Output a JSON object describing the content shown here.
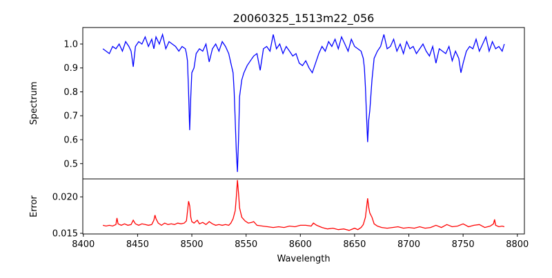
{
  "chart_data": [
    {
      "type": "line",
      "title": "20060325_1513m22_056",
      "xlabel": "",
      "ylabel": "Spectrum",
      "xlim": [
        8399.5,
        8806.5
      ],
      "ylim": [
        0.436,
        1.069
      ],
      "yticks": [
        "0.5",
        "0.6",
        "0.7",
        "0.8",
        "0.9",
        "1.0"
      ],
      "ytick_values": [
        0.5,
        0.6,
        0.7,
        0.8,
        0.9,
        1.0
      ],
      "color": "#0000ff",
      "x": [
        8418,
        8421,
        8424,
        8427,
        8430,
        8433,
        8436,
        8439,
        8442,
        8444,
        8446,
        8448,
        8451,
        8454,
        8457,
        8460,
        8463,
        8465,
        8467,
        8470,
        8473,
        8476,
        8479,
        8482,
        8485,
        8488,
        8491,
        8494,
        8495,
        8496,
        8497,
        8498,
        8499,
        8500,
        8502,
        8504,
        8507,
        8510,
        8513,
        8516,
        8519,
        8522,
        8525,
        8528,
        8531,
        8534,
        8536,
        8538,
        8539,
        8540,
        8541,
        8542,
        8543,
        8544,
        8546,
        8548,
        8551,
        8554,
        8557,
        8560,
        8563,
        8566,
        8569,
        8572,
        8575,
        8578,
        8581,
        8584,
        8587,
        8590,
        8593,
        8596,
        8599,
        8602,
        8605,
        8608,
        8611,
        8614,
        8617,
        8620,
        8623,
        8626,
        8629,
        8632,
        8635,
        8638,
        8641,
        8644,
        8647,
        8650,
        8653,
        8656,
        8658,
        8659,
        8660,
        8661,
        8662,
        8663,
        8664,
        8666,
        8668,
        8671,
        8674,
        8677,
        8680,
        8683,
        8686,
        8689,
        8692,
        8695,
        8698,
        8701,
        8704,
        8707,
        8710,
        8713,
        8716,
        8719,
        8722,
        8725,
        8728,
        8731,
        8734,
        8737,
        8740,
        8743,
        8746,
        8748,
        8750,
        8753,
        8756,
        8759,
        8762,
        8765,
        8768,
        8771,
        8774,
        8777,
        8780,
        8783,
        8786,
        8788
      ],
      "y": [
        0.98,
        0.97,
        0.96,
        0.99,
        0.98,
        1.0,
        0.97,
        1.01,
        0.99,
        0.97,
        0.905,
        0.99,
        1.01,
        1.0,
        1.03,
        0.99,
        1.02,
        0.98,
        1.03,
        1.0,
        1.04,
        0.98,
        1.01,
        1.0,
        0.99,
        0.97,
        0.99,
        0.98,
        0.96,
        0.93,
        0.8,
        0.64,
        0.78,
        0.88,
        0.9,
        0.96,
        0.98,
        0.97,
        1.0,
        0.925,
        0.98,
        1.0,
        0.97,
        1.01,
        0.99,
        0.96,
        0.92,
        0.88,
        0.8,
        0.68,
        0.55,
        0.465,
        0.6,
        0.78,
        0.85,
        0.88,
        0.91,
        0.93,
        0.95,
        0.96,
        0.89,
        0.98,
        0.99,
        0.97,
        1.04,
        0.98,
        1.0,
        0.96,
        0.99,
        0.97,
        0.95,
        0.96,
        0.92,
        0.91,
        0.93,
        0.9,
        0.88,
        0.92,
        0.96,
        0.99,
        0.97,
        1.01,
        0.99,
        1.02,
        0.98,
        1.03,
        1.0,
        0.97,
        1.02,
        0.99,
        0.98,
        0.97,
        0.94,
        0.9,
        0.82,
        0.7,
        0.59,
        0.68,
        0.72,
        0.85,
        0.94,
        0.97,
        0.99,
        1.04,
        0.98,
        0.99,
        1.02,
        0.97,
        1.0,
        0.96,
        1.01,
        0.98,
        0.99,
        0.96,
        0.98,
        1.0,
        0.97,
        0.95,
        0.99,
        0.92,
        0.98,
        0.97,
        0.96,
        0.99,
        0.93,
        0.97,
        0.94,
        0.88,
        0.92,
        0.97,
        0.99,
        0.98,
        1.02,
        0.97,
        1.0,
        1.03,
        0.97,
        1.01,
        0.98,
        0.99,
        0.97,
        1.0
      ]
    },
    {
      "type": "line",
      "xlabel": "Wavelength",
      "ylabel": "Error",
      "xlim": [
        8399.5,
        8806.5
      ],
      "ylim": [
        0.01491,
        0.02246
      ],
      "xticks": [
        "8400",
        "8450",
        "8500",
        "8550",
        "8600",
        "8650",
        "8700",
        "8750",
        "8800"
      ],
      "xtick_values": [
        8400,
        8450,
        8500,
        8550,
        8600,
        8650,
        8700,
        8750,
        8800
      ],
      "yticks": [
        "0.015",
        "0.020"
      ],
      "ytick_values": [
        0.015,
        0.02
      ],
      "color": "#ff0000",
      "x": [
        8418,
        8421,
        8424,
        8427,
        8430,
        8431,
        8432,
        8435,
        8438,
        8441,
        8444,
        8446,
        8448,
        8451,
        8454,
        8457,
        8460,
        8463,
        8465,
        8466,
        8467,
        8469,
        8472,
        8475,
        8478,
        8481,
        8484,
        8487,
        8490,
        8493,
        8495,
        8496,
        8497,
        8498,
        8499,
        8500,
        8502,
        8505,
        8507,
        8510,
        8513,
        8516,
        8519,
        8522,
        8525,
        8528,
        8531,
        8534,
        8536,
        8538,
        8540,
        8541,
        8542,
        8543,
        8544,
        8546,
        8549,
        8552,
        8555,
        8557,
        8560,
        8565,
        8570,
        8575,
        8580,
        8585,
        8590,
        8595,
        8600,
        8605,
        8610,
        8612,
        8615,
        8620,
        8625,
        8630,
        8635,
        8640,
        8645,
        8650,
        8653,
        8656,
        8658,
        8660,
        8661,
        8662,
        8663,
        8664,
        8666,
        8668,
        8671,
        8675,
        8680,
        8685,
        8690,
        8695,
        8700,
        8705,
        8710,
        8715,
        8720,
        8725,
        8730,
        8735,
        8740,
        8745,
        8750,
        8755,
        8760,
        8765,
        8770,
        8775,
        8778,
        8779,
        8780,
        8783,
        8786,
        8788
      ],
      "y": [
        0.0161,
        0.016,
        0.0161,
        0.016,
        0.0162,
        0.0171,
        0.0163,
        0.0161,
        0.0163,
        0.0161,
        0.0162,
        0.0168,
        0.0163,
        0.0161,
        0.0163,
        0.0162,
        0.0161,
        0.0162,
        0.0168,
        0.0175,
        0.017,
        0.0164,
        0.0161,
        0.0164,
        0.0162,
        0.0163,
        0.0162,
        0.0164,
        0.0163,
        0.0164,
        0.0167,
        0.018,
        0.0194,
        0.0188,
        0.0172,
        0.0166,
        0.0164,
        0.0168,
        0.0163,
        0.0165,
        0.0162,
        0.0166,
        0.0163,
        0.0161,
        0.0162,
        0.0161,
        0.0162,
        0.0161,
        0.0164,
        0.017,
        0.0181,
        0.02,
        0.0223,
        0.0205,
        0.0185,
        0.0172,
        0.0167,
        0.0164,
        0.0165,
        0.0166,
        0.0161,
        0.016,
        0.0159,
        0.0158,
        0.0159,
        0.0158,
        0.016,
        0.0159,
        0.0161,
        0.0161,
        0.016,
        0.0164,
        0.0161,
        0.0158,
        0.0156,
        0.0157,
        0.0155,
        0.0156,
        0.0154,
        0.0157,
        0.0155,
        0.0158,
        0.0162,
        0.0172,
        0.0185,
        0.0198,
        0.0186,
        0.0178,
        0.0172,
        0.0163,
        0.016,
        0.0158,
        0.0157,
        0.0158,
        0.0159,
        0.0157,
        0.0158,
        0.0157,
        0.0159,
        0.0157,
        0.0158,
        0.0161,
        0.0158,
        0.0162,
        0.0159,
        0.016,
        0.0163,
        0.0159,
        0.0161,
        0.0162,
        0.0158,
        0.016,
        0.0163,
        0.0169,
        0.0161,
        0.0159,
        0.016,
        0.0159
      ]
    }
  ]
}
